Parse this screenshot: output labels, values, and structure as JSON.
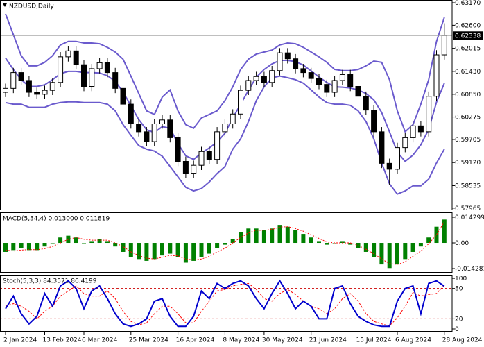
{
  "chart_data": [
    {
      "type": "candlestick",
      "title": "NZDUSD,Daily",
      "categories": [
        "2 Jan 2024",
        null,
        null,
        null,
        null,
        "13 Feb 2024",
        null,
        null,
        null,
        null,
        "6 Mar 2024",
        null,
        null,
        null,
        null,
        null,
        "25 Mar 2024",
        null,
        null,
        null,
        null,
        null,
        "16 Apr 2024",
        null,
        null,
        null,
        null,
        null,
        "8 May 2024",
        null,
        null,
        null,
        null,
        "30 May 2024",
        null,
        null,
        null,
        null,
        null,
        "21 Jun 2024",
        null,
        null,
        null,
        null,
        null,
        "15 Jul 2024",
        null,
        null,
        null,
        null,
        "6 Aug 2024",
        null,
        null,
        null,
        null,
        null,
        "28 Aug 2024"
      ],
      "open": [
        0.609,
        0.61,
        0.614,
        0.612,
        0.609,
        0.6085,
        0.6095,
        0.6115,
        0.618,
        0.6195,
        0.616,
        0.6105,
        0.615,
        0.6165,
        0.614,
        0.61,
        0.606,
        0.601,
        0.599,
        0.5965,
        0.601,
        0.602,
        0.5975,
        0.5915,
        0.5885,
        0.5905,
        0.594,
        0.592,
        0.599,
        0.601,
        0.6035,
        0.6095,
        0.612,
        0.613,
        0.6115,
        0.6145,
        0.619,
        0.6175,
        0.615,
        0.614,
        0.6125,
        0.611,
        0.609,
        0.612,
        0.6135,
        0.6105,
        0.608,
        0.6045,
        0.599,
        0.591,
        0.5895,
        0.595,
        0.5975,
        0.6005,
        0.599,
        0.608,
        0.6185
      ],
      "high": [
        0.6112,
        0.6152,
        0.6152,
        0.6132,
        0.6102,
        0.6107,
        0.6127,
        0.6192,
        0.6207,
        0.6207,
        0.6172,
        0.6162,
        0.6177,
        0.6177,
        0.6152,
        0.6112,
        0.6072,
        0.6022,
        0.6002,
        0.6022,
        0.6032,
        0.6032,
        0.5987,
        0.5927,
        0.5917,
        0.5952,
        0.5952,
        0.6002,
        0.6022,
        0.6047,
        0.6107,
        0.6132,
        0.6142,
        0.6142,
        0.6157,
        0.6202,
        0.6202,
        0.6187,
        0.6162,
        0.6152,
        0.6137,
        0.6122,
        0.6132,
        0.6147,
        0.6147,
        0.6117,
        0.6092,
        0.6057,
        0.6002,
        0.5922,
        0.5962,
        0.5987,
        0.6017,
        0.6017,
        0.6092,
        0.6197,
        0.6265
      ],
      "low": [
        0.6078,
        0.6088,
        0.6108,
        0.6078,
        0.6073,
        0.6073,
        0.6083,
        0.6103,
        0.6168,
        0.6148,
        0.6093,
        0.6093,
        0.6138,
        0.6128,
        0.6088,
        0.6048,
        0.5998,
        0.5978,
        0.5953,
        0.5953,
        0.5998,
        0.5963,
        0.5903,
        0.5873,
        0.5873,
        0.5893,
        0.5908,
        0.5908,
        0.5978,
        0.5998,
        0.6023,
        0.6083,
        0.6108,
        0.6103,
        0.6103,
        0.6133,
        0.6163,
        0.6138,
        0.6128,
        0.6113,
        0.6098,
        0.6078,
        0.6078,
        0.6108,
        0.6093,
        0.6068,
        0.6033,
        0.5978,
        0.5898,
        0.5855,
        0.5883,
        0.5938,
        0.5963,
        0.5978,
        0.5978,
        0.6068,
        0.6173
      ],
      "close": [
        0.61,
        0.614,
        0.612,
        0.609,
        0.6085,
        0.6095,
        0.6115,
        0.618,
        0.6195,
        0.616,
        0.6105,
        0.615,
        0.6165,
        0.614,
        0.61,
        0.606,
        0.601,
        0.599,
        0.5965,
        0.601,
        0.602,
        0.5975,
        0.5915,
        0.5885,
        0.5905,
        0.594,
        0.592,
        0.599,
        0.601,
        0.6035,
        0.6095,
        0.612,
        0.613,
        0.6115,
        0.6145,
        0.619,
        0.6175,
        0.615,
        0.614,
        0.6125,
        0.611,
        0.609,
        0.612,
        0.6135,
        0.6105,
        0.608,
        0.6045,
        0.599,
        0.591,
        0.5895,
        0.595,
        0.5975,
        0.6005,
        0.599,
        0.608,
        0.6185,
        0.6234
      ],
      "bands": {
        "color": "#6a5acd",
        "upper": [
          0.6289,
          0.6236,
          0.6183,
          0.6157,
          0.6157,
          0.6166,
          0.6183,
          0.621,
          0.6219,
          0.6219,
          0.6215,
          0.6215,
          0.6213,
          0.6204,
          0.6192,
          0.6174,
          0.6131,
          0.6087,
          0.6043,
          0.6034,
          0.6078,
          0.6096,
          0.6043,
          0.6008,
          0.5999,
          0.6025,
          0.6034,
          0.6043,
          0.6069,
          0.6104,
          0.6148,
          0.6174,
          0.6187,
          0.6192,
          0.6197,
          0.621,
          0.6215,
          0.6213,
          0.6204,
          0.6192,
          0.618,
          0.6166,
          0.6148,
          0.6145,
          0.6145,
          0.6148,
          0.6157,
          0.6169,
          0.6166,
          0.6122,
          0.6043,
          0.599,
          0.6008,
          0.606,
          0.6122,
          0.6219,
          0.628
        ],
        "middle": [
          0.6177,
          0.6148,
          0.6122,
          0.6105,
          0.6105,
          0.6109,
          0.6122,
          0.6137,
          0.6143,
          0.6143,
          0.614,
          0.614,
          0.6139,
          0.6132,
          0.6118,
          0.6091,
          0.6056,
          0.6021,
          0.5995,
          0.5988,
          0.6003,
          0.5999,
          0.596,
          0.5929,
          0.592,
          0.5936,
          0.5949,
          0.5964,
          0.5986,
          0.6025,
          0.606,
          0.6095,
          0.6128,
          0.6148,
          0.6162,
          0.6171,
          0.6171,
          0.6168,
          0.6159,
          0.6144,
          0.6129,
          0.6115,
          0.6104,
          0.6103,
          0.6101,
          0.6096,
          0.6087,
          0.6071,
          0.6039,
          0.599,
          0.5938,
          0.5915,
          0.5931,
          0.5957,
          0.5996,
          0.6065,
          0.6113
        ],
        "lower": [
          0.6064,
          0.606,
          0.606,
          0.6052,
          0.6052,
          0.6052,
          0.606,
          0.6064,
          0.6066,
          0.6066,
          0.6064,
          0.6064,
          0.6064,
          0.606,
          0.6043,
          0.6008,
          0.5981,
          0.5955,
          0.5946,
          0.5941,
          0.5928,
          0.5902,
          0.5876,
          0.5849,
          0.584,
          0.5846,
          0.5863,
          0.5884,
          0.5902,
          0.5946,
          0.5972,
          0.6016,
          0.6069,
          0.6104,
          0.6127,
          0.6131,
          0.6127,
          0.6122,
          0.6113,
          0.6096,
          0.6078,
          0.6064,
          0.606,
          0.606,
          0.6057,
          0.6043,
          0.6016,
          0.5972,
          0.5911,
          0.5858,
          0.5832,
          0.584,
          0.5853,
          0.5853,
          0.587,
          0.5911,
          0.5946
        ]
      },
      "last_price": {
        "value": 0.62338,
        "label": "0.62338"
      },
      "ylim": [
        0.5791,
        0.6324
      ],
      "yticks": [
        {
          "value": 0.6317,
          "label": "0.63170"
        },
        {
          "value": 0.626,
          "label": "0.62600"
        },
        {
          "value": 0.62015,
          "label": "0.62015"
        },
        {
          "value": 0.6143,
          "label": "0.61430"
        },
        {
          "value": 0.6085,
          "label": "0.60850"
        },
        {
          "value": 0.60275,
          "label": "0.60275"
        },
        {
          "value": 0.59705,
          "label": "0.59705"
        },
        {
          "value": 0.5912,
          "label": "0.59120"
        },
        {
          "value": 0.58535,
          "label": "0.58535"
        },
        {
          "value": 0.57965,
          "label": "0.57965"
        }
      ]
    },
    {
      "type": "macd",
      "title": "MACD(5,34,4) 0.013000 0.011819",
      "color": "#008000",
      "signal_color": "#ff0000",
      "values": [
        -0.005,
        -0.004,
        -0.003,
        -0.004,
        -0.004,
        -0.002,
        0.0,
        0.003,
        0.004,
        0.003,
        0.0,
        0.001,
        0.002,
        0.001,
        -0.002,
        -0.005,
        -0.008,
        -0.009,
        -0.01,
        -0.009,
        -0.007,
        -0.006,
        -0.008,
        -0.011,
        -0.01,
        -0.008,
        -0.006,
        -0.003,
        -0.001,
        0.002,
        0.006,
        0.008,
        0.008,
        0.007,
        0.008,
        0.01,
        0.009,
        0.007,
        0.005,
        0.003,
        0.001,
        -0.001,
        0.0,
        0.001,
        -0.001,
        -0.003,
        -0.005,
        -0.008,
        -0.012,
        -0.014,
        -0.012,
        -0.009,
        -0.005,
        -0.002,
        0.003,
        0.009,
        0.013
      ],
      "signal": [
        -0.004,
        -0.0045,
        -0.004,
        -0.0037,
        -0.0038,
        -0.0032,
        -0.002,
        0.0,
        0.002,
        0.003,
        0.002,
        0.0015,
        0.0015,
        0.0015,
        0.0,
        -0.002,
        -0.005,
        -0.007,
        -0.0085,
        -0.009,
        -0.008,
        -0.007,
        -0.0072,
        -0.009,
        -0.0095,
        -0.009,
        -0.0075,
        -0.005,
        -0.003,
        0.0,
        0.003,
        0.0055,
        0.007,
        0.007,
        0.0075,
        0.0088,
        0.009,
        0.008,
        0.0065,
        0.0045,
        0.0025,
        0.0005,
        0.0,
        0.0,
        0.0,
        -0.0015,
        -0.0035,
        -0.006,
        -0.009,
        -0.0115,
        -0.012,
        -0.0105,
        -0.0075,
        -0.0045,
        -0.0005,
        0.0045,
        0.011819
      ],
      "ylim": [
        -0.0166,
        0.017
      ],
      "yticks": [
        0.014299,
        {
          "value": 0,
          "label": "0.00"
        },
        -0.014281
      ]
    },
    {
      "type": "stochastic",
      "title": "Stoch(5,3,3) 84.3571 86.4199",
      "color": "#0000cd",
      "signal_color": "#ff0000",
      "values": [
        40,
        65,
        30,
        10,
        25,
        70,
        45,
        85,
        95,
        80,
        40,
        75,
        85,
        60,
        30,
        10,
        5,
        10,
        20,
        55,
        60,
        25,
        5,
        5,
        25,
        75,
        60,
        90,
        80,
        90,
        95,
        85,
        60,
        40,
        70,
        95,
        70,
        40,
        55,
        45,
        20,
        20,
        80,
        85,
        50,
        25,
        15,
        8,
        5,
        5,
        55,
        80,
        85,
        30,
        90,
        95,
        84.3571
      ],
      "signal": [
        45,
        50,
        45,
        35,
        20,
        35,
        45,
        65,
        75,
        85,
        70,
        65,
        65,
        75,
        60,
        35,
        15,
        8,
        12,
        30,
        45,
        45,
        30,
        12,
        12,
        35,
        55,
        75,
        78,
        85,
        88,
        90,
        78,
        60,
        55,
        70,
        78,
        68,
        55,
        45,
        40,
        30,
        40,
        60,
        70,
        55,
        30,
        15,
        10,
        6,
        22,
        45,
        72,
        65,
        68,
        70,
        86.4199
      ],
      "levels": [
        80,
        20
      ],
      "ylim": [
        -5.5,
        107
      ],
      "yticks": [
        100,
        80,
        20,
        0
      ]
    }
  ]
}
